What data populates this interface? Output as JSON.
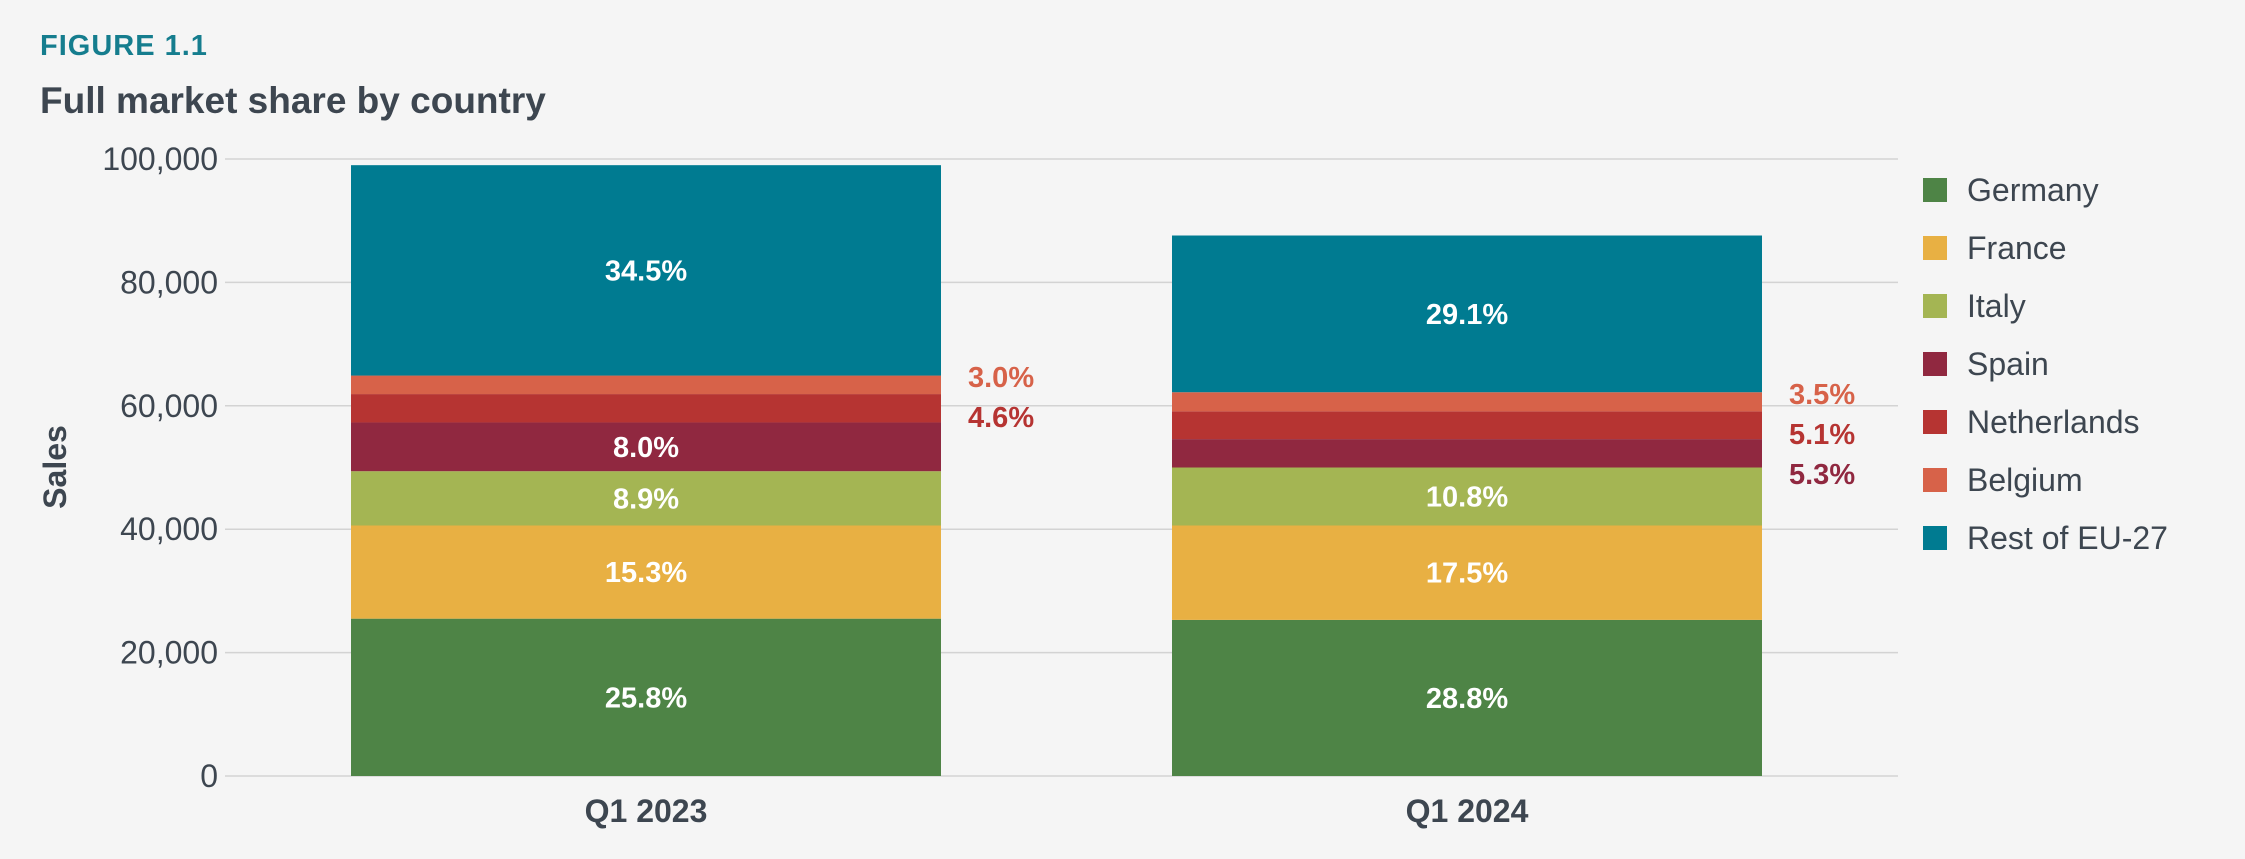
{
  "figure_label": "FIGURE 1.1",
  "colors": {
    "Germany": "#4e8446",
    "France": "#e8b043",
    "Italy": "#a4b553",
    "Spain": "#902840",
    "Netherlands": "#b63432",
    "Belgium": "#d76249",
    "Rest of EU-27": "#007b91",
    "grid": "#d3d3d3",
    "text": "#3d4650"
  },
  "chart_data": {
    "type": "bar",
    "stacked": true,
    "title": "Full market share by country",
    "xlabel": "",
    "ylabel": "Sales",
    "ylim": [
      0,
      100000
    ],
    "yticks": [
      0,
      20000,
      40000,
      60000,
      80000,
      100000
    ],
    "ytick_labels": [
      "0",
      "20,000",
      "40,000",
      "60,000",
      "80,000",
      "100,000"
    ],
    "categories": [
      "Q1 2023",
      "Q1 2024"
    ],
    "grid": true,
    "legend": "right",
    "series": [
      {
        "name": "Germany",
        "values": [
          25500,
          25300
        ],
        "labels": [
          "25.8%",
          "28.8%"
        ],
        "label_pos": [
          "inside",
          "inside"
        ]
      },
      {
        "name": "France",
        "values": [
          15100,
          15300
        ],
        "labels": [
          "15.3%",
          "17.5%"
        ],
        "label_pos": [
          "inside",
          "inside"
        ]
      },
      {
        "name": "Italy",
        "values": [
          8800,
          9400
        ],
        "labels": [
          "8.9%",
          "10.8%"
        ],
        "label_pos": [
          "inside",
          "inside"
        ]
      },
      {
        "name": "Spain",
        "values": [
          7900,
          4600
        ],
        "labels": [
          "8.0%",
          "5.3%"
        ],
        "label_pos": [
          "inside",
          "outside"
        ]
      },
      {
        "name": "Netherlands",
        "values": [
          4600,
          4500
        ],
        "labels": [
          "4.6%",
          "5.1%"
        ],
        "label_pos": [
          "outside",
          "outside"
        ]
      },
      {
        "name": "Belgium",
        "values": [
          3000,
          3100
        ],
        "labels": [
          "3.0%",
          "3.5%"
        ],
        "label_pos": [
          "outside",
          "outside"
        ]
      },
      {
        "name": "Rest of EU-27",
        "values": [
          34100,
          25400
        ],
        "labels": [
          "34.5%",
          "29.1%"
        ],
        "label_pos": [
          "inside",
          "inside"
        ]
      }
    ]
  }
}
